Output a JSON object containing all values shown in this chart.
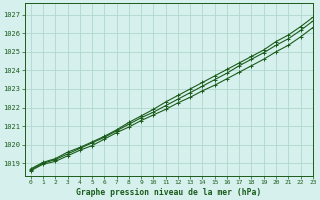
{
  "title": "Graphe pression niveau de la mer (hPa)",
  "bg_color": "#d6f0ee",
  "grid_color": "#b0d8cc",
  "line_color": "#1a5c1a",
  "marker_color": "#1a5c1a",
  "xlim": [
    -0.5,
    23
  ],
  "ylim": [
    1018.3,
    1027.6
  ],
  "yticks": [
    1019,
    1020,
    1021,
    1022,
    1023,
    1024,
    1025,
    1026,
    1027
  ],
  "xticks": [
    0,
    1,
    2,
    3,
    4,
    5,
    6,
    7,
    8,
    9,
    10,
    11,
    12,
    13,
    14,
    15,
    16,
    17,
    18,
    19,
    20,
    21,
    22,
    23
  ],
  "series": [
    [
      1018.7,
      1019.05,
      1019.25,
      1019.6,
      1019.85,
      1020.15,
      1020.45,
      1020.8,
      1021.2,
      1021.55,
      1021.9,
      1022.3,
      1022.65,
      1023.0,
      1023.35,
      1023.7,
      1024.05,
      1024.4,
      1024.75,
      1025.1,
      1025.55,
      1025.9,
      1026.35,
      1026.85
    ],
    [
      1018.65,
      1019.0,
      1019.2,
      1019.5,
      1019.8,
      1020.1,
      1020.4,
      1020.75,
      1021.1,
      1021.45,
      1021.75,
      1022.1,
      1022.45,
      1022.8,
      1023.15,
      1023.5,
      1023.85,
      1024.25,
      1024.6,
      1024.95,
      1025.35,
      1025.7,
      1026.15,
      1026.65
    ],
    [
      1018.6,
      1018.95,
      1019.1,
      1019.4,
      1019.7,
      1019.95,
      1020.3,
      1020.65,
      1020.95,
      1021.3,
      1021.6,
      1021.9,
      1022.25,
      1022.55,
      1022.9,
      1023.2,
      1023.55,
      1023.9,
      1024.25,
      1024.6,
      1025.0,
      1025.35,
      1025.8,
      1026.3
    ]
  ]
}
